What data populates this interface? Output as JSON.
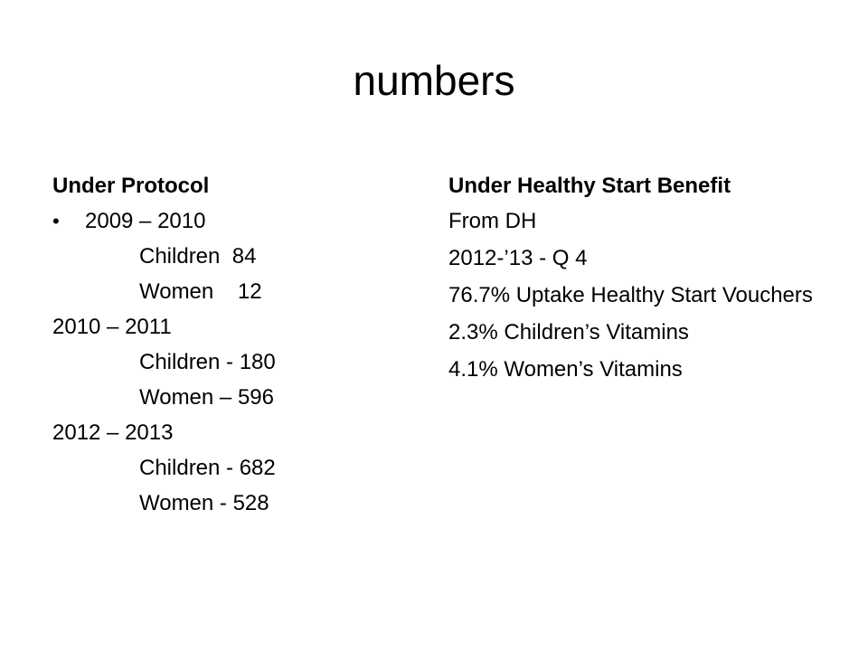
{
  "slide": {
    "title": "numbers",
    "left": {
      "heading": "Under Protocol",
      "lines": [
        "2009 – 2010",
        "Children  84",
        "Women    12",
        "2010 – 2011",
        "Children - 180",
        "Women – 596",
        "2012 – 2013",
        "Children - 682",
        "Women - 528"
      ]
    },
    "right": {
      "heading": "Under Healthy Start Benefit",
      "lines": [
        "From DH",
        "2012-’13 - Q 4",
        "76.7% Uptake Healthy Start Vouchers",
        "2.3% Children’s Vitamins",
        "4.1% Women’s Vitamins"
      ]
    }
  }
}
